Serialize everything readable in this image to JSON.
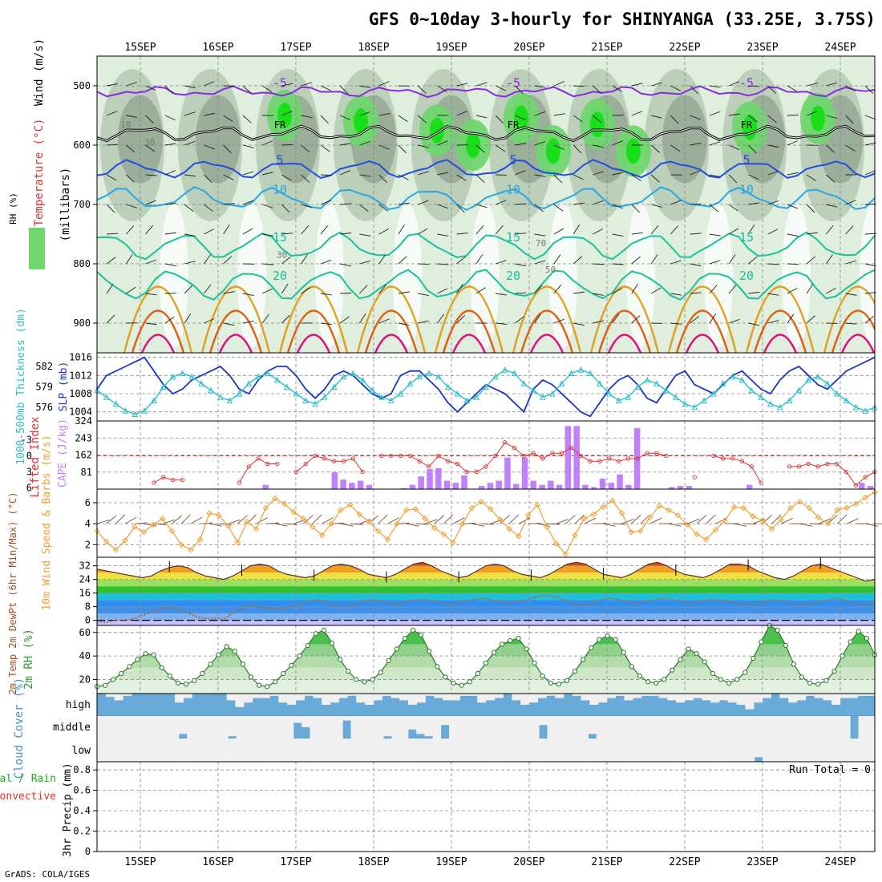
{
  "title": "GFS 0~10day 3-hourly for SHINYANGA (33.25E, 3.75S)",
  "footer": "GrADS: COLA/IGES",
  "dates": [
    "15SEP",
    "16SEP",
    "17SEP",
    "18SEP",
    "19SEP",
    "20SEP",
    "21SEP",
    "22SEP",
    "23SEP",
    "24SEP"
  ],
  "colors": {
    "rh_light": "#dfeedd",
    "rh_mid": "#b5c9b3",
    "rh_dark": "#8da08b",
    "rh_green": "#6fd66f",
    "rh_bright": "#18e018",
    "temp_purple": "#8a2be2",
    "temp_blue": "#1f4ee0",
    "temp_lightblue": "#2aa7e6",
    "temp_teal": "#19c19c",
    "temp_orange": "#e0a020",
    "temp_darkorange": "#e06010",
    "temp_magenta": "#e0107a",
    "slp": "#1a35c8",
    "thickness": "#2cc0c8",
    "lifted_index": "#e03030",
    "cape": "#c080ff",
    "wind": "#f0a030",
    "barb": "#7a5030",
    "dewpoint": "#a07040",
    "rh2m": "#2ca02c",
    "cloud": "#6aaad8",
    "cloud_clear": "#f0f0f0"
  },
  "chart_data": [
    {
      "name": "upper_air_cross_section",
      "type": "heatmap",
      "ylabel_rh": "RH (%)",
      "ylabel_temp": "Temperature (°C)",
      "ylabel_wind": "Wind (m/s)",
      "ylabel_p": "(millibars)",
      "y_ticks": [
        500,
        600,
        700,
        800,
        900
      ],
      "ylim": [
        450,
        950
      ],
      "freezing_label": "FR",
      "rh_labels": [
        "30",
        "50",
        "70",
        "10"
      ],
      "isotherms": [
        {
          "label": "-5",
          "color_key": "temp_purple",
          "pressure": 510
        },
        {
          "label": "FR",
          "color_key": "temp_purple",
          "pressure": 580
        },
        {
          "label": "5",
          "color_key": "temp_blue",
          "pressure": 640
        },
        {
          "label": "10",
          "color_key": "temp_lightblue",
          "pressure": 690
        },
        {
          "label": "15",
          "color_key": "temp_teal",
          "pressure": 770
        },
        {
          "label": "20",
          "color_key": "temp_teal",
          "pressure": 835
        }
      ]
    },
    {
      "name": "slp_thickness",
      "type": "line",
      "ylabel_left": "1000-500mb Thickness (dm)",
      "ylabel_right": "SLP (mb)",
      "left_ticks": [
        582,
        579,
        576
      ],
      "left_range": [
        574,
        584
      ],
      "right_ticks": [
        1016,
        1012,
        1008,
        1004
      ],
      "right_range": [
        1002,
        1017
      ],
      "slp": [
        1009,
        1012,
        1013,
        1014,
        1015,
        1016,
        1013,
        1010,
        1008,
        1009,
        1011,
        1012,
        1013,
        1014,
        1012,
        1009,
        1008,
        1011,
        1013,
        1014,
        1014,
        1012,
        1009,
        1007,
        1009,
        1012,
        1013,
        1012,
        1010,
        1008,
        1007,
        1008,
        1012,
        1013,
        1013,
        1011,
        1009,
        1006,
        1004,
        1006,
        1008,
        1010,
        1009,
        1008,
        1006,
        1004,
        1009,
        1011,
        1010,
        1008,
        1006,
        1004,
        1003,
        1006,
        1009,
        1011,
        1012,
        1010,
        1007,
        1006,
        1009,
        1012,
        1013,
        1010,
        1009,
        1008,
        1010,
        1012,
        1013,
        1011,
        1009,
        1008,
        1011,
        1013,
        1014,
        1012,
        1010,
        1009,
        1011,
        1013,
        1014,
        1015,
        1016
      ],
      "thickness": [
        578.5,
        577.5,
        576.5,
        575.5,
        575,
        575.5,
        577,
        579,
        580.5,
        581,
        580.5,
        579.5,
        578.5,
        577.5,
        577,
        578,
        579.5,
        580.5,
        581,
        580,
        579,
        578,
        577,
        576.5,
        577.5,
        579,
        580.5,
        581,
        580,
        578.5,
        577.5,
        577,
        578,
        579.5,
        580.5,
        581,
        580.5,
        579,
        578,
        577,
        577.5,
        579,
        580.5,
        581.5,
        581,
        579.5,
        578.5,
        577.5,
        578,
        579.5,
        581,
        581.5,
        581,
        579.5,
        578,
        577,
        577.5,
        579,
        580,
        579.5,
        578.5,
        577.5,
        576.5,
        576,
        577,
        578,
        579.5,
        580.5,
        580,
        578.5,
        577.5,
        576.5,
        576,
        577,
        578.5,
        580,
        580.5,
        579.5,
        578,
        577,
        576,
        575.5,
        576
      ]
    },
    {
      "name": "cape_lifted_index",
      "type": "bar",
      "ylabel_left": "Lifted Index",
      "ylabel_right": "CAPE (J/kg)",
      "li_ticks": [
        "-3",
        "0",
        "3",
        "6"
      ],
      "li_range": [
        -6.5,
        6.2
      ],
      "cape_ticks": [
        "324",
        "243",
        "162",
        "81"
      ],
      "cape_range": [
        0,
        324
      ],
      "lifted_index": [
        null,
        null,
        null,
        null,
        null,
        null,
        5,
        4,
        4.5,
        4.5,
        null,
        null,
        null,
        null,
        null,
        5,
        2,
        0.5,
        1.5,
        1.5,
        null,
        3,
        1.5,
        0,
        0.5,
        1,
        1,
        0.5,
        3,
        null,
        0,
        0,
        0,
        0,
        1,
        2,
        0,
        1,
        1.5,
        3,
        3,
        2,
        0,
        -2.5,
        -1.5,
        0,
        -0.5,
        0.5,
        -0.5,
        -0.5,
        -1.5,
        0,
        1,
        1,
        0.5,
        1,
        0.5,
        0.5,
        -0.5,
        -0.5,
        0,
        null,
        null,
        4,
        null,
        0,
        0.5,
        0.5,
        1,
        2,
        5,
        null,
        null,
        2,
        2,
        1.5,
        2,
        1.5,
        1.5,
        3,
        5.5,
        4,
        3
      ],
      "cape": [
        0,
        0,
        0,
        0,
        0,
        0,
        0,
        0,
        0,
        0,
        0,
        0,
        0,
        0,
        0,
        0,
        0,
        0,
        0,
        20,
        0,
        0,
        0,
        0,
        0,
        0,
        0,
        80,
        45,
        30,
        40,
        20,
        0,
        0,
        0,
        5,
        20,
        60,
        95,
        100,
        40,
        30,
        65,
        0,
        15,
        30,
        40,
        150,
        25,
        150,
        40,
        20,
        40,
        20,
        300,
        300,
        20,
        10,
        50,
        30,
        70,
        20,
        290,
        0,
        0,
        0,
        10,
        15,
        15,
        0,
        0,
        0,
        0,
        0,
        0,
        20,
        0,
        0,
        0,
        0,
        0,
        0,
        0,
        0,
        0,
        0,
        0,
        0,
        30,
        15
      ]
    },
    {
      "name": "wind_10m",
      "type": "line",
      "ylabel": "10m Wind Speed & Barbs (m/s)",
      "y_ticks": [
        6,
        4,
        2
      ],
      "ylim": [
        0.8,
        7.3
      ],
      "speed": [
        3.3,
        2.3,
        1.5,
        2.4,
        3.7,
        3.2,
        3.9,
        4.5,
        3.3,
        2,
        1.5,
        2.5,
        5,
        4.8,
        3.8,
        2.2,
        4.2,
        3.5,
        5.5,
        6.4,
        5.9,
        5.1,
        4.5,
        3.7,
        2.9,
        4,
        5.3,
        5.8,
        4.9,
        4.2,
        3.3,
        2.5,
        4,
        5.3,
        5.4,
        4.5,
        3.6,
        3,
        2.2,
        4,
        5.5,
        6.1,
        5.4,
        4.4,
        3.5,
        2.8,
        4.8,
        5.8,
        3.7,
        2.1,
        1.1,
        2.9,
        4.5,
        4.9,
        5.6,
        6.2,
        5,
        3.2,
        3.3,
        4.6,
        5.7,
        5.3,
        4.8,
        3.9,
        3,
        2.5,
        3.4,
        4.3,
        5.6,
        5.5,
        4.7,
        4.3,
        3.5,
        4.4,
        5.5,
        6.1,
        5.5,
        4.6,
        4,
        5.3,
        5.5,
        5.9,
        6.5,
        7
      ]
    },
    {
      "name": "temp_2m",
      "type": "area",
      "ylabel": "2m Temp 2m DewPt (6hr Min/Max) (°C)",
      "y_ticks": [
        32,
        24,
        16,
        8,
        0
      ],
      "ylim": [
        -3,
        37
      ],
      "temperature": [
        30,
        29,
        28,
        27,
        26,
        25,
        26,
        29,
        31,
        32,
        31,
        28,
        26,
        25,
        24,
        26,
        29,
        32,
        33,
        32,
        29,
        27,
        26,
        25,
        26,
        29,
        32,
        33,
        32,
        30,
        27,
        26,
        25,
        27,
        30,
        33,
        34,
        32,
        29,
        27,
        25,
        26,
        29,
        32,
        33,
        32,
        29,
        27,
        26,
        25,
        27,
        30,
        33,
        34,
        33,
        30,
        27,
        26,
        25,
        27,
        30,
        33,
        34,
        32,
        29,
        27,
        26,
        25,
        27,
        30,
        33,
        33,
        32,
        29,
        27,
        25,
        24,
        26,
        29,
        32,
        33,
        31,
        29,
        27,
        25,
        23,
        24
      ],
      "dewpoint": [
        -1,
        -1,
        0,
        0,
        1,
        3,
        5,
        7,
        8,
        7,
        4,
        2,
        1,
        1,
        1,
        5,
        8,
        9,
        8,
        7,
        7,
        8,
        9,
        11,
        12,
        11,
        9,
        8,
        9,
        11,
        12,
        11,
        10,
        10,
        11,
        12,
        12,
        11,
        10,
        10,
        11,
        12,
        13,
        12,
        11,
        10,
        11,
        12,
        14,
        15,
        14,
        12,
        10,
        9,
        10,
        12,
        13,
        12,
        11,
        10,
        11,
        12,
        13,
        12,
        11,
        10,
        11,
        12,
        12,
        11,
        10,
        9,
        10,
        11,
        12,
        11,
        10,
        9,
        10,
        11,
        12,
        13,
        11,
        10,
        9,
        11
      ]
    },
    {
      "name": "rh_2m",
      "type": "area",
      "ylabel": "2m RH (%)",
      "y_ticks": [
        60,
        40,
        20
      ],
      "ylim": [
        8,
        66
      ],
      "rh": [
        14,
        15,
        20,
        25,
        31,
        37,
        42,
        41,
        30,
        23,
        17,
        16,
        19,
        25,
        33,
        41,
        48,
        44,
        33,
        22,
        15,
        14,
        18,
        25,
        32,
        40,
        49,
        59,
        62,
        51,
        37,
        27,
        20,
        18,
        20,
        26,
        36,
        46,
        55,
        62,
        58,
        44,
        31,
        22,
        17,
        15,
        18,
        25,
        34,
        43,
        50,
        53,
        55,
        46,
        34,
        23,
        17,
        16,
        19,
        27,
        37,
        47,
        54,
        57,
        54,
        43,
        31,
        23,
        18,
        17,
        20,
        28,
        37,
        46,
        42,
        35,
        25,
        20,
        17,
        20,
        26,
        38,
        52,
        66,
        62,
        49,
        33,
        22,
        17,
        16,
        19,
        27,
        40,
        52,
        61,
        55,
        41
      ]
    },
    {
      "name": "cloud_cover",
      "type": "bar",
      "ylabel": "Cloud Cover (%)",
      "levels": [
        "high",
        "middle",
        "low"
      ],
      "high": [
        100,
        85,
        70,
        90,
        100,
        100,
        100,
        100,
        100,
        60,
        80,
        100,
        100,
        100,
        100,
        70,
        40,
        60,
        80,
        80,
        90,
        60,
        50,
        70,
        90,
        80,
        50,
        60,
        80,
        90,
        60,
        50,
        70,
        90,
        80,
        70,
        50,
        60,
        90,
        80,
        70,
        70,
        90,
        90,
        60,
        70,
        80,
        100,
        70,
        50,
        60,
        80,
        90,
        80,
        100,
        90,
        70,
        50,
        60,
        80,
        90,
        70,
        80,
        90,
        90,
        80,
        70,
        60,
        70,
        80,
        70,
        60,
        70,
        60,
        50,
        30,
        60,
        80,
        100,
        80,
        60,
        70,
        90,
        80,
        70,
        50,
        80,
        80,
        90,
        90
      ],
      "middle": [
        0,
        0,
        0,
        0,
        0,
        0,
        0,
        0,
        0,
        0,
        20,
        0,
        0,
        0,
        0,
        0,
        10,
        0,
        0,
        0,
        0,
        0,
        0,
        0,
        70,
        50,
        0,
        0,
        0,
        0,
        80,
        0,
        0,
        0,
        0,
        10,
        0,
        0,
        40,
        20,
        10,
        0,
        60,
        0,
        0,
        0,
        0,
        0,
        0,
        0,
        0,
        0,
        0,
        0,
        60,
        0,
        0,
        0,
        0,
        0,
        20,
        0,
        0,
        0,
        0,
        0,
        0,
        0,
        0,
        0,
        0,
        0,
        0,
        0,
        0,
        0,
        0,
        0,
        0,
        0,
        0,
        0,
        0,
        0,
        0,
        0,
        0,
        0,
        0,
        0,
        0,
        0,
        100,
        0,
        0
      ],
      "low": [
        0,
        0,
        0,
        0,
        0,
        0,
        0,
        0,
        0,
        0,
        0,
        0,
        0,
        0,
        0,
        0,
        0,
        0,
        0,
        0,
        0,
        0,
        0,
        0,
        0,
        0,
        0,
        0,
        0,
        0,
        0,
        0,
        0,
        0,
        0,
        0,
        0,
        0,
        0,
        0,
        0,
        0,
        0,
        0,
        0,
        0,
        0,
        0,
        0,
        0,
        0,
        0,
        0,
        0,
        0,
        0,
        0,
        0,
        0,
        0,
        0,
        0,
        0,
        0,
        0,
        0,
        0,
        0,
        0,
        0,
        0,
        0,
        0,
        0,
        0,
        0,
        0,
        0,
        0,
        0,
        0,
        0,
        20,
        0,
        0,
        0,
        0,
        0,
        0,
        0,
        0,
        0,
        0,
        0,
        0,
        0,
        0
      ]
    },
    {
      "name": "precip_3hr",
      "type": "bar",
      "ylabel": "3hr Precip (mm)",
      "legend_total_rain": "Total / Rain",
      "legend_convective": "Convective",
      "run_total": "Run Total = 0",
      "y_ticks": [
        "0.8",
        "0.6",
        "0.4",
        "0.2",
        "0"
      ],
      "ylim": [
        0,
        0.88
      ],
      "values": []
    }
  ]
}
